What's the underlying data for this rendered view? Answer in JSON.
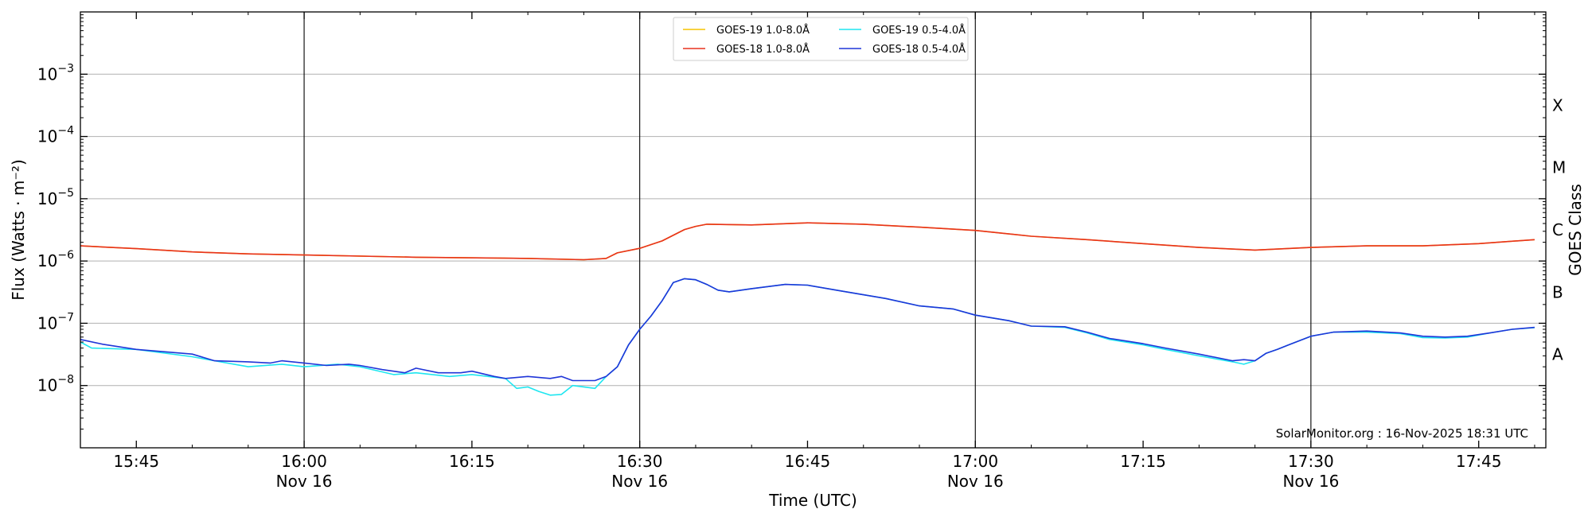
{
  "chart_data": {
    "type": "line",
    "title": "",
    "xlabel": "Time (UTC)",
    "ylabel": "Flux (Watts · m⁻²)",
    "y2label": "GOES Class",
    "yscale": "log",
    "ylim": [
      1e-09,
      0.01
    ],
    "xlim_minutes": [
      "15:40",
      "17:51"
    ],
    "grid": "horizontal",
    "legend_placement": "top-center",
    "credit": "SolarMonitor.org : 16-Nov-2025 18:31 UTC",
    "x_ticks": [
      {
        "time": "15:45",
        "label": "15:45",
        "sublabel": ""
      },
      {
        "time": "16:00",
        "label": "16:00",
        "sublabel": "Nov 16"
      },
      {
        "time": "16:15",
        "label": "16:15",
        "sublabel": ""
      },
      {
        "time": "16:30",
        "label": "16:30",
        "sublabel": "Nov 16"
      },
      {
        "time": "16:45",
        "label": "16:45",
        "sublabel": ""
      },
      {
        "time": "17:00",
        "label": "17:00",
        "sublabel": "Nov 16"
      },
      {
        "time": "17:15",
        "label": "17:15",
        "sublabel": ""
      },
      {
        "time": "17:30",
        "label": "17:30",
        "sublabel": "Nov 16"
      },
      {
        "time": "17:45",
        "label": "17:45",
        "sublabel": ""
      }
    ],
    "vlines": [
      "16:00",
      "16:30",
      "17:00",
      "17:30"
    ],
    "y_ticks": [
      {
        "value": 1e-08,
        "mant": "10",
        "exp": "−8"
      },
      {
        "value": 1e-07,
        "mant": "10",
        "exp": "−7"
      },
      {
        "value": 1e-06,
        "mant": "10",
        "exp": "−6"
      },
      {
        "value": 1e-05,
        "mant": "10",
        "exp": "−5"
      },
      {
        "value": 0.0001,
        "mant": "10",
        "exp": "−4"
      },
      {
        "value": 0.001,
        "mant": "10",
        "exp": "−3"
      }
    ],
    "goes_classes": [
      {
        "label": "A",
        "value": 3.16e-08
      },
      {
        "label": "B",
        "value": 3.16e-07
      },
      {
        "label": "C",
        "value": 3.16e-06
      },
      {
        "label": "M",
        "value": 3.16e-05
      },
      {
        "label": "X",
        "value": 0.000316
      }
    ],
    "series": [
      {
        "name": "GOES-19 1.0-8.0Å",
        "color": "#f5c400",
        "points": [
          [
            "15:40",
            1.75e-06
          ],
          [
            "15:45",
            1.58e-06
          ],
          [
            "15:50",
            1.4e-06
          ],
          [
            "15:55",
            1.3e-06
          ],
          [
            "16:00",
            1.25e-06
          ],
          [
            "16:10",
            1.15e-06
          ],
          [
            "16:20",
            1.1e-06
          ],
          [
            "16:25",
            1.05e-06
          ],
          [
            "16:27",
            1.1e-06
          ],
          [
            "16:28",
            1.35e-06
          ],
          [
            "16:30",
            1.6e-06
          ],
          [
            "16:32",
            2.1e-06
          ],
          [
            "16:34",
            3.2e-06
          ],
          [
            "16:35",
            3.6e-06
          ],
          [
            "16:36",
            3.9e-06
          ],
          [
            "16:40",
            3.8e-06
          ],
          [
            "16:45",
            4.1e-06
          ],
          [
            "16:50",
            3.9e-06
          ],
          [
            "16:55",
            3.5e-06
          ],
          [
            "17:00",
            3.1e-06
          ],
          [
            "17:05",
            2.5e-06
          ],
          [
            "17:10",
            2.2e-06
          ],
          [
            "17:15",
            1.9e-06
          ],
          [
            "17:20",
            1.65e-06
          ],
          [
            "17:25",
            1.5e-06
          ],
          [
            "17:30",
            1.65e-06
          ],
          [
            "17:35",
            1.75e-06
          ],
          [
            "17:40",
            1.75e-06
          ],
          [
            "17:45",
            1.9e-06
          ],
          [
            "17:50",
            2.2e-06
          ]
        ]
      },
      {
        "name": "GOES-18 1.0-8.0Å",
        "color": "#e8321e",
        "points": [
          [
            "15:40",
            1.75e-06
          ],
          [
            "15:45",
            1.58e-06
          ],
          [
            "15:50",
            1.4e-06
          ],
          [
            "15:55",
            1.3e-06
          ],
          [
            "16:00",
            1.25e-06
          ],
          [
            "16:10",
            1.15e-06
          ],
          [
            "16:20",
            1.1e-06
          ],
          [
            "16:25",
            1.05e-06
          ],
          [
            "16:27",
            1.1e-06
          ],
          [
            "16:28",
            1.35e-06
          ],
          [
            "16:30",
            1.6e-06
          ],
          [
            "16:32",
            2.1e-06
          ],
          [
            "16:34",
            3.2e-06
          ],
          [
            "16:35",
            3.6e-06
          ],
          [
            "16:36",
            3.9e-06
          ],
          [
            "16:40",
            3.8e-06
          ],
          [
            "16:45",
            4.1e-06
          ],
          [
            "16:50",
            3.9e-06
          ],
          [
            "16:55",
            3.5e-06
          ],
          [
            "17:00",
            3.1e-06
          ],
          [
            "17:05",
            2.5e-06
          ],
          [
            "17:10",
            2.2e-06
          ],
          [
            "17:15",
            1.9e-06
          ],
          [
            "17:20",
            1.65e-06
          ],
          [
            "17:25",
            1.5e-06
          ],
          [
            "17:30",
            1.65e-06
          ],
          [
            "17:35",
            1.75e-06
          ],
          [
            "17:40",
            1.75e-06
          ],
          [
            "17:45",
            1.9e-06
          ],
          [
            "17:50",
            2.2e-06
          ]
        ]
      },
      {
        "name": "GOES-19 0.5-4.0Å",
        "color": "#1ee6f0",
        "points": [
          [
            "15:40",
            5e-08
          ],
          [
            "15:41",
            4e-08
          ],
          [
            "15:45",
            3.8e-08
          ],
          [
            "15:50",
            2.9e-08
          ],
          [
            "15:52",
            2.5e-08
          ],
          [
            "15:55",
            2e-08
          ],
          [
            "15:58",
            2.2e-08
          ],
          [
            "16:00",
            2e-08
          ],
          [
            "16:03",
            2.2e-08
          ],
          [
            "16:05",
            2e-08
          ],
          [
            "16:08",
            1.5e-08
          ],
          [
            "16:10",
            1.6e-08
          ],
          [
            "16:13",
            1.4e-08
          ],
          [
            "16:15",
            1.5e-08
          ],
          [
            "16:18",
            1.3e-08
          ],
          [
            "16:19",
            9e-09
          ],
          [
            "16:20",
            9.5e-09
          ],
          [
            "16:21",
            8e-09
          ],
          [
            "16:22",
            7e-09
          ],
          [
            "16:23",
            7.2e-09
          ],
          [
            "16:24",
            1e-08
          ],
          [
            "16:26",
            9e-09
          ],
          [
            "16:27",
            1.4e-08
          ],
          [
            "16:28",
            2e-08
          ],
          [
            "16:29",
            4.5e-08
          ],
          [
            "16:30",
            8e-08
          ],
          [
            "16:31",
            1.3e-07
          ],
          [
            "16:32",
            2.3e-07
          ],
          [
            "16:33",
            4.5e-07
          ],
          [
            "16:34",
            5.2e-07
          ],
          [
            "16:35",
            5e-07
          ],
          [
            "16:36",
            4.2e-07
          ],
          [
            "16:37",
            3.4e-07
          ],
          [
            "16:38",
            3.2e-07
          ],
          [
            "16:40",
            3.6e-07
          ],
          [
            "16:43",
            4.2e-07
          ],
          [
            "16:45",
            4.1e-07
          ],
          [
            "16:48",
            3.3e-07
          ],
          [
            "16:52",
            2.5e-07
          ],
          [
            "16:55",
            1.9e-07
          ],
          [
            "16:58",
            1.7e-07
          ],
          [
            "17:00",
            1.35e-07
          ],
          [
            "17:03",
            1.1e-07
          ],
          [
            "17:05",
            9e-08
          ],
          [
            "17:08",
            8.6e-08
          ],
          [
            "17:10",
            7e-08
          ],
          [
            "17:12",
            5.5e-08
          ],
          [
            "17:15",
            4.5e-08
          ],
          [
            "17:17",
            3.8e-08
          ],
          [
            "17:20",
            3e-08
          ],
          [
            "17:23",
            2.4e-08
          ],
          [
            "17:24",
            2.2e-08
          ],
          [
            "17:25",
            2.5e-08
          ],
          [
            "17:26",
            3.3e-08
          ],
          [
            "17:27",
            3.8e-08
          ],
          [
            "17:28",
            4.5e-08
          ],
          [
            "17:30",
            6.2e-08
          ],
          [
            "17:32",
            7.2e-08
          ],
          [
            "17:35",
            7.2e-08
          ],
          [
            "17:38",
            6.8e-08
          ],
          [
            "17:40",
            5.9e-08
          ],
          [
            "17:42",
            5.8e-08
          ],
          [
            "17:44",
            6e-08
          ],
          [
            "17:46",
            7e-08
          ],
          [
            "17:48",
            8e-08
          ],
          [
            "17:50",
            8.5e-08
          ]
        ]
      },
      {
        "name": "GOES-18 0.5-4.0Å",
        "color": "#1f35d8",
        "points": [
          [
            "15:40",
            5.5e-08
          ],
          [
            "15:42",
            4.6e-08
          ],
          [
            "15:45",
            3.8e-08
          ],
          [
            "15:50",
            3.2e-08
          ],
          [
            "15:52",
            2.5e-08
          ],
          [
            "15:55",
            2.4e-08
          ],
          [
            "15:57",
            2.3e-08
          ],
          [
            "15:58",
            2.5e-08
          ],
          [
            "16:00",
            2.3e-08
          ],
          [
            "16:02",
            2.1e-08
          ],
          [
            "16:04",
            2.2e-08
          ],
          [
            "16:05",
            2.1e-08
          ],
          [
            "16:07",
            1.8e-08
          ],
          [
            "16:09",
            1.6e-08
          ],
          [
            "16:10",
            1.9e-08
          ],
          [
            "16:12",
            1.6e-08
          ],
          [
            "16:14",
            1.6e-08
          ],
          [
            "16:15",
            1.7e-08
          ],
          [
            "16:17",
            1.4e-08
          ],
          [
            "16:18",
            1.3e-08
          ],
          [
            "16:20",
            1.4e-08
          ],
          [
            "16:22",
            1.3e-08
          ],
          [
            "16:23",
            1.4e-08
          ],
          [
            "16:24",
            1.2e-08
          ],
          [
            "16:26",
            1.2e-08
          ],
          [
            "16:27",
            1.4e-08
          ],
          [
            "16:28",
            2e-08
          ],
          [
            "16:29",
            4.5e-08
          ],
          [
            "16:30",
            8e-08
          ],
          [
            "16:31",
            1.3e-07
          ],
          [
            "16:32",
            2.3e-07
          ],
          [
            "16:33",
            4.5e-07
          ],
          [
            "16:34",
            5.2e-07
          ],
          [
            "16:35",
            5e-07
          ],
          [
            "16:36",
            4.2e-07
          ],
          [
            "16:37",
            3.4e-07
          ],
          [
            "16:38",
            3.2e-07
          ],
          [
            "16:40",
            3.6e-07
          ],
          [
            "16:43",
            4.2e-07
          ],
          [
            "16:45",
            4.1e-07
          ],
          [
            "16:48",
            3.3e-07
          ],
          [
            "16:52",
            2.5e-07
          ],
          [
            "16:55",
            1.9e-07
          ],
          [
            "16:58",
            1.7e-07
          ],
          [
            "17:00",
            1.35e-07
          ],
          [
            "17:03",
            1.1e-07
          ],
          [
            "17:05",
            9e-08
          ],
          [
            "17:08",
            8.8e-08
          ],
          [
            "17:10",
            7.2e-08
          ],
          [
            "17:12",
            5.7e-08
          ],
          [
            "17:15",
            4.7e-08
          ],
          [
            "17:17",
            4e-08
          ],
          [
            "17:20",
            3.2e-08
          ],
          [
            "17:23",
            2.5e-08
          ],
          [
            "17:24",
            2.6e-08
          ],
          [
            "17:25",
            2.5e-08
          ],
          [
            "17:26",
            3.3e-08
          ],
          [
            "17:27",
            3.8e-08
          ],
          [
            "17:28",
            4.5e-08
          ],
          [
            "17:30",
            6.2e-08
          ],
          [
            "17:32",
            7.2e-08
          ],
          [
            "17:35",
            7.5e-08
          ],
          [
            "17:38",
            7e-08
          ],
          [
            "17:40",
            6.2e-08
          ],
          [
            "17:42",
            6e-08
          ],
          [
            "17:44",
            6.2e-08
          ],
          [
            "17:46",
            7e-08
          ],
          [
            "17:48",
            8e-08
          ],
          [
            "17:50",
            8.6e-08
          ]
        ]
      }
    ]
  }
}
